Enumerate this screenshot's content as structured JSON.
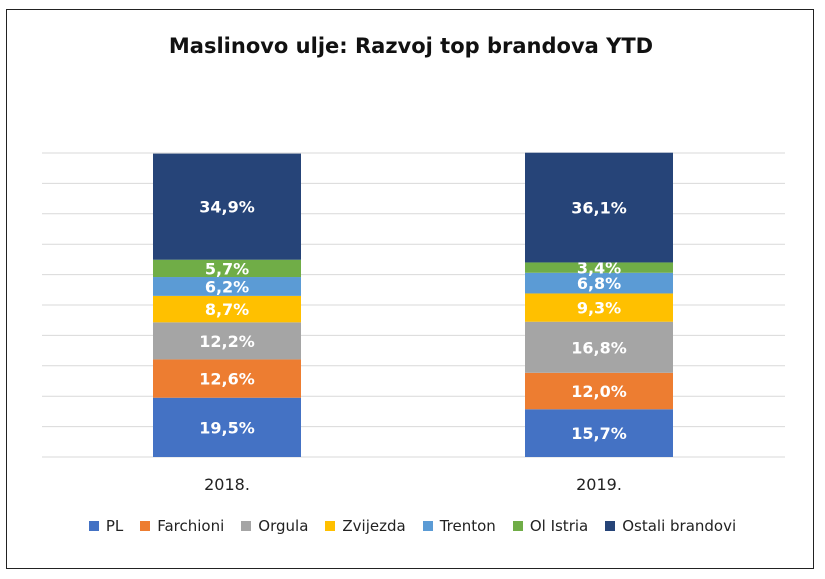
{
  "chart_data": {
    "type": "stacked-bar-100",
    "title": "Maslinovo ulje: Razvoj top brandova YTD",
    "categories": [
      "2018.",
      "2019."
    ],
    "ylim": [
      0,
      100
    ],
    "grid": true,
    "legend_position": "bottom",
    "series": [
      {
        "name": "PL",
        "color": "#4472C4",
        "values": [
          19.5,
          15.7
        ],
        "labels": [
          "19,5%",
          "15,7%"
        ]
      },
      {
        "name": "Farchioni",
        "color": "#ED7D31",
        "values": [
          12.6,
          12.0
        ],
        "labels": [
          "12,6%",
          "12,0%"
        ]
      },
      {
        "name": "Orgula",
        "color": "#A5A5A5",
        "values": [
          12.2,
          16.8
        ],
        "labels": [
          "12,2%",
          "16,8%"
        ]
      },
      {
        "name": "Zvijezda",
        "color": "#FFC000",
        "values": [
          8.7,
          9.3
        ],
        "labels": [
          "8,7%",
          "9,3%"
        ]
      },
      {
        "name": "Trenton",
        "color": "#5B9BD5",
        "values": [
          6.2,
          6.8
        ],
        "labels": [
          "6,2%",
          "6,8%"
        ]
      },
      {
        "name": "Ol Istria",
        "color": "#70AD47",
        "values": [
          5.7,
          3.4
        ],
        "labels": [
          "5,7%",
          "3,4%"
        ]
      },
      {
        "name": "Ostali brandovi",
        "color": "#264478",
        "values": [
          34.9,
          36.1
        ],
        "labels": [
          "34,9%",
          "36,1%"
        ]
      }
    ]
  }
}
